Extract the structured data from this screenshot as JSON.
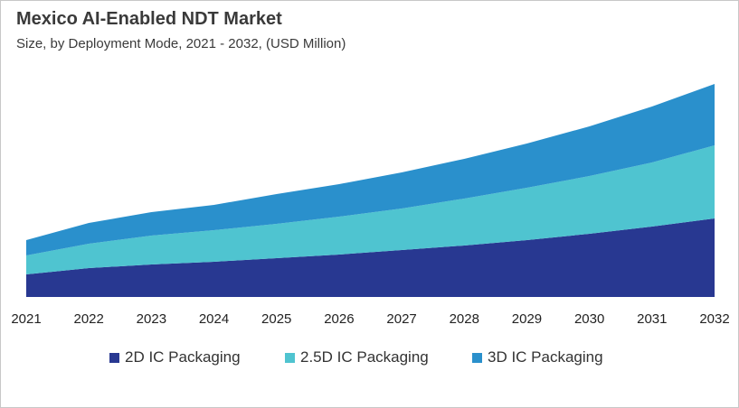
{
  "title": "Mexico AI-Enabled NDT Market",
  "subtitle": "Size, by Deployment Mode, 2021 - 2032, (USD Million)",
  "chart_data": {
    "type": "area",
    "stacked": true,
    "title": "Mexico AI-Enabled NDT Market",
    "subtitle": "Size, by Deployment Mode, 2021 - 2032, (USD Million)",
    "xlabel": "",
    "ylabel": "",
    "categories": [
      "2021",
      "2022",
      "2023",
      "2024",
      "2025",
      "2026",
      "2027",
      "2028",
      "2029",
      "2030",
      "2031",
      "2032"
    ],
    "series": [
      {
        "name": "2D IC Packaging",
        "color": "#283891",
        "values": [
          25,
          32,
          36,
          39,
          43,
          47,
          52,
          57,
          63,
          70,
          78,
          87
        ]
      },
      {
        "name": "2.5D IC Packaging",
        "color": "#4fc4d0",
        "values": [
          21,
          27,
          32,
          35,
          38,
          42,
          46,
          52,
          58,
          64,
          71,
          81
        ]
      },
      {
        "name": "3D IC Packaging",
        "color": "#2a90cc",
        "values": [
          17,
          23,
          26,
          28,
          33,
          36,
          40,
          44,
          49,
          55,
          62,
          68
        ]
      }
    ],
    "ylim": [
      0,
      240
    ],
    "grid": false,
    "legend_position": "bottom"
  }
}
